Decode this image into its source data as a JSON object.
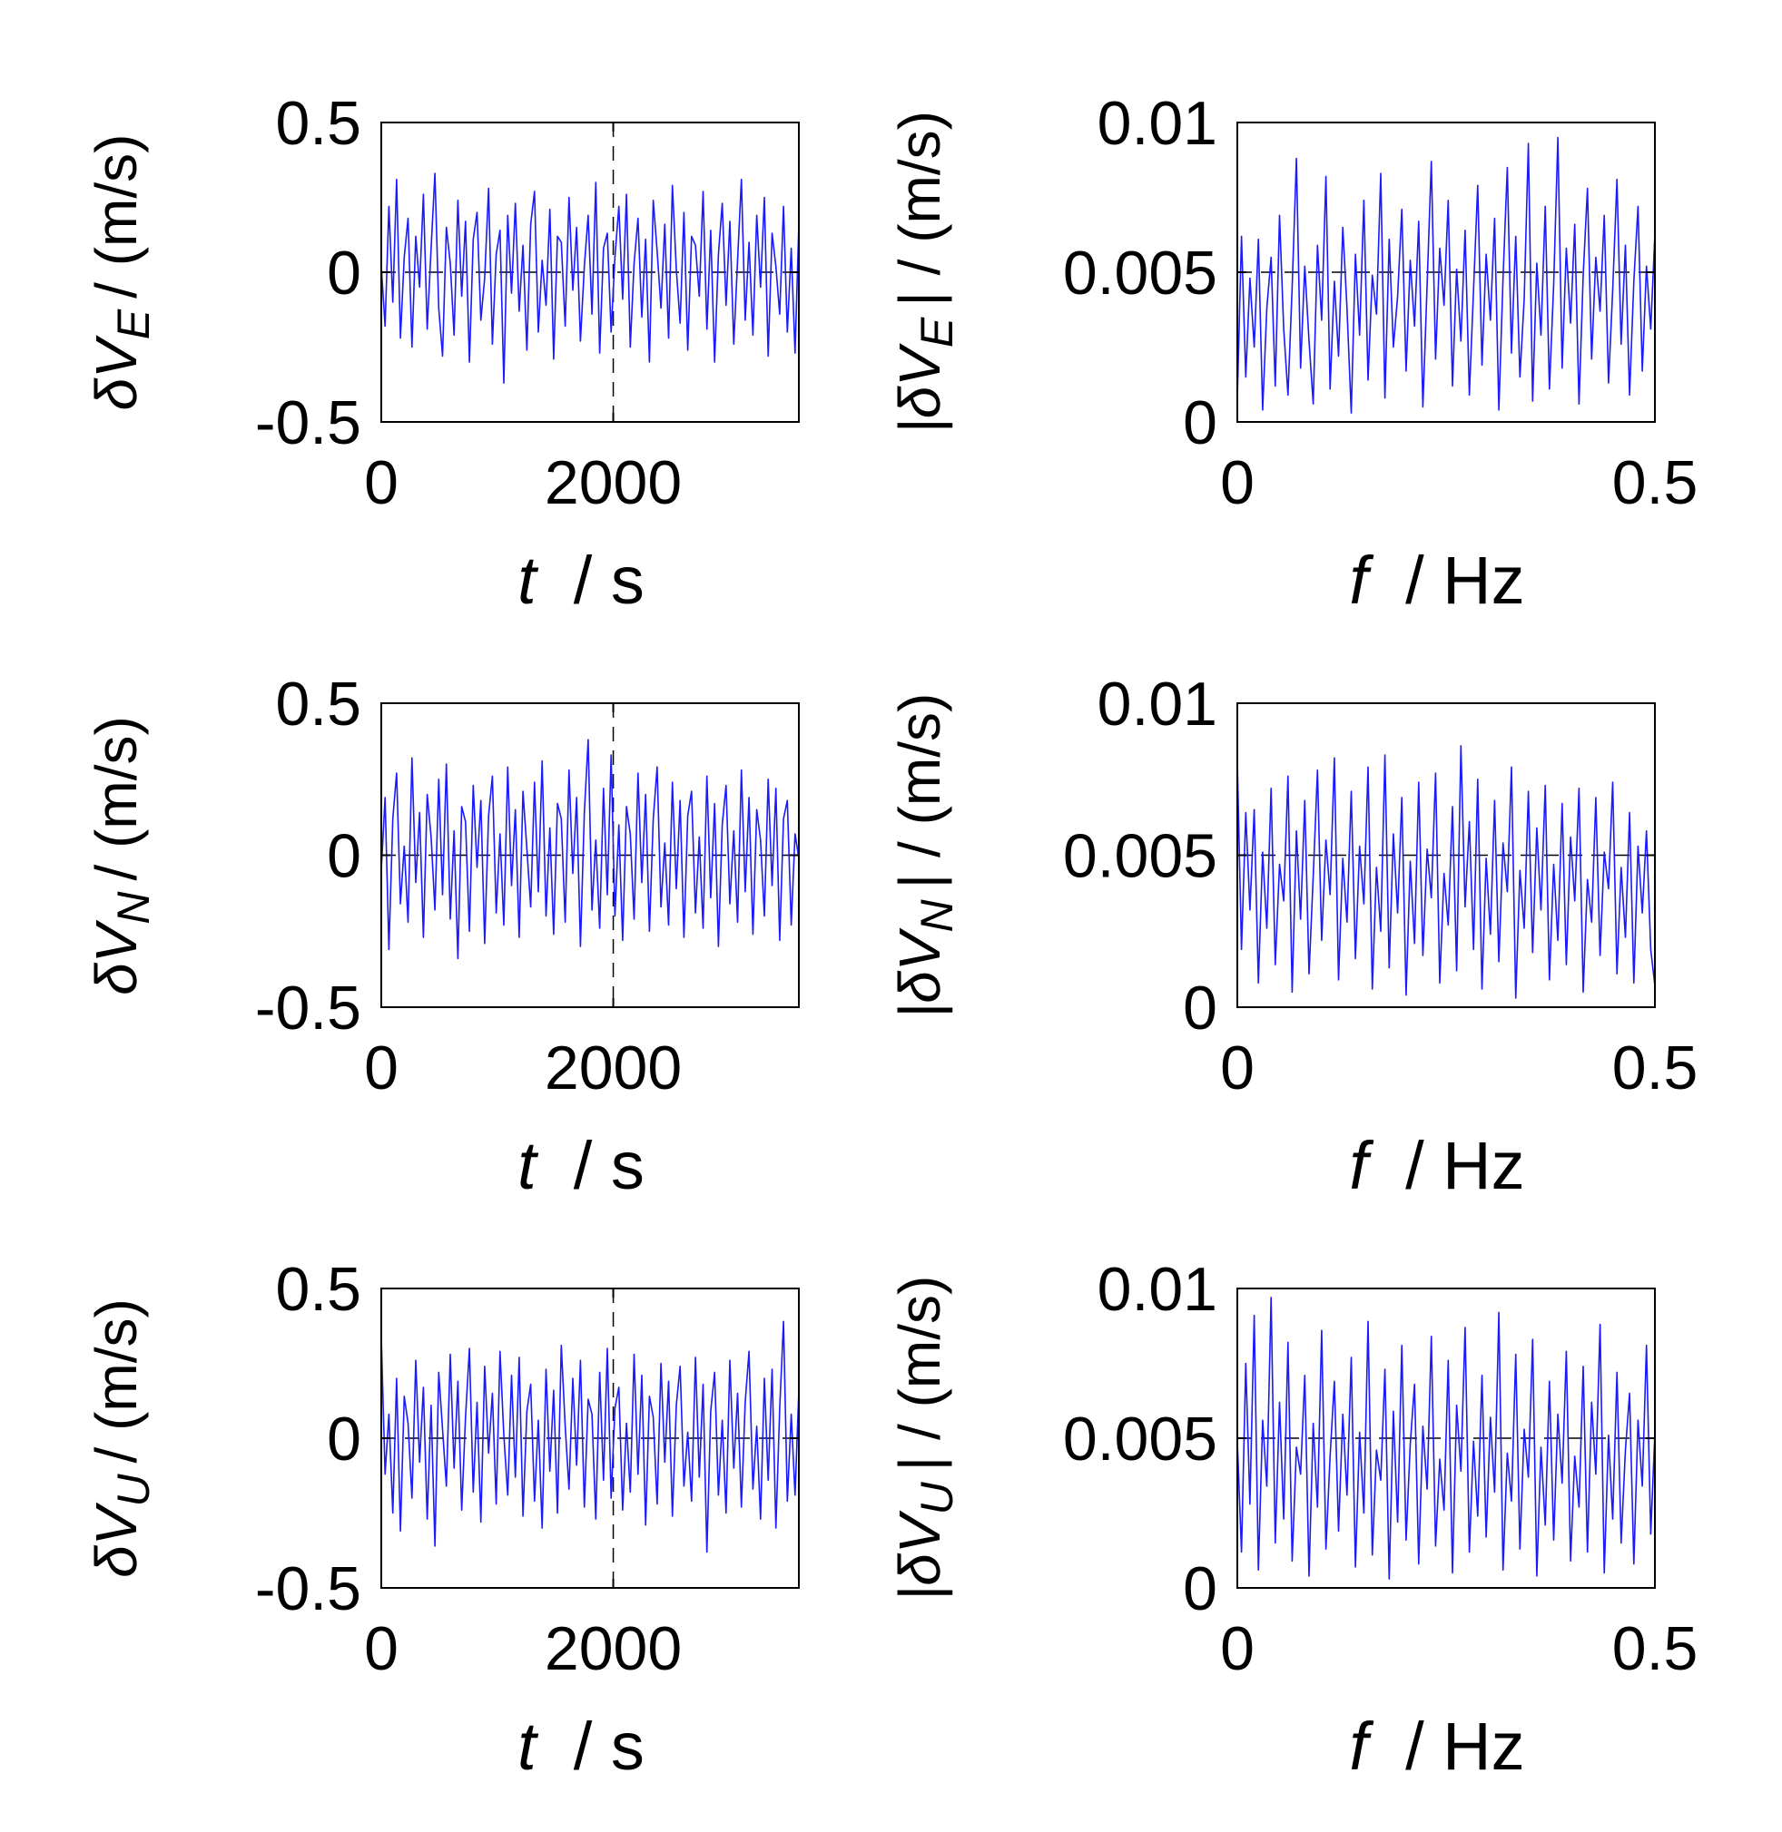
{
  "chart_data": [
    {
      "type": "line",
      "panel": "time-east",
      "xlabel": "t  / s",
      "xlabel_var": "t",
      "xlabel_unit": "/ s",
      "ylabel": "δV_E / (m/s)",
      "ylabel_prefix": "δ",
      "ylabel_var": "V",
      "ylabel_sub": "E",
      "ylabel_unit": "/ (m/s)",
      "xlim": [
        0,
        3600
      ],
      "ylim": [
        -0.5,
        0.5
      ],
      "xticks": [
        0,
        2000
      ],
      "xtick_labels": [
        "0",
        "2000"
      ],
      "yticks": [
        -0.5,
        0,
        0.5
      ],
      "ytick_labels": [
        "-0.5",
        "0",
        "0.5"
      ],
      "reference_lines": [
        {
          "orientation": "horizontal",
          "value": 0,
          "style": "dashed"
        },
        {
          "orientation": "vertical",
          "value": 2000,
          "style": "dashed"
        }
      ],
      "series": [
        {
          "name": "δV_E",
          "color": "#1a1aff",
          "x_start": 0,
          "x_end": 3600,
          "values": [
            0.02,
            -0.18,
            0.22,
            -0.1,
            0.31,
            -0.22,
            0.05,
            0.18,
            -0.25,
            0.12,
            -0.05,
            0.26,
            -0.19,
            0.08,
            0.33,
            -0.12,
            -0.28,
            0.15,
            0.03,
            -0.21,
            0.24,
            -0.08,
            0.17,
            -0.3,
            0.11,
            0.2,
            -0.16,
            -0.02,
            0.28,
            -0.24,
            0.06,
            0.14,
            -0.37,
            0.19,
            -0.07,
            0.23,
            -0.13,
            0.09,
            -0.26,
            0.16,
            0.27,
            -0.2,
            0.04,
            -0.11,
            0.21,
            -0.29,
            0.12,
            0.1,
            -0.18,
            0.25,
            -0.06,
            0.15,
            -0.23,
            0.02,
            0.19,
            -0.14,
            0.3,
            -0.27,
            0.08,
            0.13,
            -0.2,
            0.05,
            0.22,
            -0.09,
            0.26,
            -0.25,
            0.03,
            0.18,
            -0.15,
            0.11,
            -0.3,
            0.24,
            0.07,
            -0.12,
            0.16,
            -0.22,
            0.29,
            0.01,
            -0.17,
            0.2,
            -0.26,
            0.12,
            0.09,
            -0.08,
            0.27,
            -0.19,
            0.14,
            -0.3,
            0.06,
            0.23,
            -0.11,
            0.17,
            -0.24,
            0.04,
            0.31,
            -0.16,
            0.1,
            -0.21,
            0.19,
            -0.05,
            0.25,
            -0.28,
            0.13,
            0.02,
            -0.14,
            0.22,
            -0.2,
            0.08,
            -0.27,
            0.16
          ]
        }
      ]
    },
    {
      "type": "line",
      "panel": "spectrum-east",
      "xlabel": "f  / Hz",
      "xlabel_var": "f",
      "xlabel_unit": "/ Hz",
      "ylabel": "|δV_E| / (m/s)",
      "ylabel_prefix": "|δ",
      "ylabel_var": "V",
      "ylabel_sub": "E",
      "ylabel_unit": "| / (m/s)",
      "xlim": [
        0,
        0.5
      ],
      "ylim": [
        0,
        0.01
      ],
      "xticks": [
        0,
        0.5
      ],
      "xtick_labels": [
        "0",
        "0.5"
      ],
      "yticks": [
        0,
        0.005,
        0.01
      ],
      "ytick_labels": [
        "0",
        "0.005",
        "0.01"
      ],
      "reference_lines": [
        {
          "orientation": "horizontal",
          "value": 0.005,
          "style": "dashed"
        }
      ],
      "series": [
        {
          "name": "|δV_E|",
          "color": "#1a1aff",
          "x_start": 0,
          "x_end": 0.5,
          "values": [
            0.0008,
            0.0062,
            0.0015,
            0.0048,
            0.0025,
            0.0061,
            0.0004,
            0.0038,
            0.0055,
            0.0012,
            0.0069,
            0.0031,
            0.0009,
            0.0045,
            0.0088,
            0.0018,
            0.0052,
            0.0027,
            0.0006,
            0.0059,
            0.0034,
            0.0082,
            0.0011,
            0.0047,
            0.0022,
            0.0065,
            0.0038,
            0.0003,
            0.0056,
            0.0029,
            0.0074,
            0.0014,
            0.0049,
            0.0036,
            0.0083,
            0.0008,
            0.0061,
            0.0025,
            0.0042,
            0.0071,
            0.0017,
            0.0054,
            0.0032,
            0.0067,
            0.0005,
            0.0046,
            0.0087,
            0.0021,
            0.0058,
            0.0039,
            0.0074,
            0.0012,
            0.0051,
            0.0027,
            0.0064,
            0.0009,
            0.0044,
            0.0079,
            0.0019,
            0.0056,
            0.0034,
            0.0068,
            0.0004,
            0.0048,
            0.0085,
            0.0023,
            0.0062,
            0.0015,
            0.0041,
            0.0093,
            0.0007,
            0.0053,
            0.0029,
            0.0072,
            0.0011,
            0.0046,
            0.0095,
            0.0018,
            0.0058,
            0.0033,
            0.0066,
            0.0006,
            0.0049,
            0.0078,
            0.0021,
            0.0055,
            0.0037,
            0.0069,
            0.0013,
            0.0044,
            0.0081,
            0.0026,
            0.0059,
            0.0009,
            0.0047,
            0.0072,
            0.0017,
            0.0052,
            0.0031,
            0.0063
          ]
        }
      ]
    },
    {
      "type": "line",
      "panel": "time-north",
      "xlabel": "t  / s",
      "xlabel_var": "t",
      "xlabel_unit": "/ s",
      "ylabel": "δV_N / (m/s)",
      "ylabel_prefix": "δ",
      "ylabel_var": "V",
      "ylabel_sub": "N",
      "ylabel_unit": "/ (m/s)",
      "xlim": [
        0,
        3600
      ],
      "ylim": [
        -0.5,
        0.5
      ],
      "xticks": [
        0,
        2000
      ],
      "xtick_labels": [
        "0",
        "2000"
      ],
      "yticks": [
        -0.5,
        0,
        0.5
      ],
      "ytick_labels": [
        "-0.5",
        "0",
        "0.5"
      ],
      "reference_lines": [
        {
          "orientation": "horizontal",
          "value": 0,
          "style": "dashed"
        },
        {
          "orientation": "vertical",
          "value": 2000,
          "style": "dashed"
        }
      ],
      "series": [
        {
          "name": "δV_N",
          "color": "#1a1aff",
          "x_start": 0,
          "x_end": 3600,
          "values": [
            -0.05,
            0.19,
            -0.31,
            0.12,
            0.27,
            -0.16,
            0.03,
            -0.22,
            0.32,
            -0.09,
            0.14,
            -0.27,
            0.2,
            0.06,
            -0.18,
            0.25,
            -0.13,
            0.3,
            -0.21,
            0.08,
            -0.34,
            0.16,
            0.11,
            -0.25,
            0.23,
            -0.04,
            0.18,
            -0.29,
            0.13,
            0.26,
            -0.19,
            0.07,
            -0.23,
            0.29,
            -0.1,
            0.15,
            -0.27,
            0.21,
            0.02,
            -0.17,
            0.24,
            -0.12,
            0.31,
            -0.2,
            0.09,
            -0.26,
            0.17,
            0.12,
            -0.22,
            0.28,
            -0.06,
            0.19,
            -0.3,
            0.14,
            0.38,
            -0.18,
            0.05,
            -0.24,
            0.22,
            -0.13,
            0.33,
            -0.2,
            0.1,
            -0.28,
            0.16,
            0.07,
            -0.21,
            0.27,
            -0.09,
            0.2,
            -0.25,
            0.12,
            0.29,
            -0.17,
            0.04,
            -0.23,
            0.24,
            -0.11,
            0.18,
            -0.27,
            0.13,
            0.21,
            -0.19,
            0.06,
            -0.24,
            0.26,
            -0.14,
            0.17,
            -0.3,
            0.1,
            0.23,
            -0.16,
            0.08,
            -0.22,
            0.28,
            -0.12,
            0.19,
            -0.26,
            0.15,
            0.05,
            -0.2,
            0.25,
            -0.1,
            0.22,
            -0.28,
            0.12,
            0.18,
            -0.23,
            0.07,
            -0.01
          ]
        }
      ]
    },
    {
      "type": "line",
      "panel": "spectrum-north",
      "xlabel": "f  / Hz",
      "xlabel_var": "f",
      "xlabel_unit": "/ Hz",
      "ylabel": "|δV_N| / (m/s)",
      "ylabel_prefix": "|δ",
      "ylabel_var": "V",
      "ylabel_sub": "N",
      "ylabel_unit": "| / (m/s)",
      "xlim": [
        0,
        0.5
      ],
      "ylim": [
        0,
        0.01
      ],
      "xticks": [
        0,
        0.5
      ],
      "xtick_labels": [
        "0",
        "0.5"
      ],
      "yticks": [
        0,
        0.005,
        0.01
      ],
      "ytick_labels": [
        "0",
        "0.005",
        "0.01"
      ],
      "reference_lines": [
        {
          "orientation": "horizontal",
          "value": 0.005,
          "style": "dashed"
        }
      ],
      "series": [
        {
          "name": "|δV_N|",
          "color": "#1a1aff",
          "x_start": 0,
          "x_end": 0.5,
          "values": [
            0.0081,
            0.0019,
            0.0064,
            0.0032,
            0.0065,
            0.0008,
            0.0051,
            0.0026,
            0.0072,
            0.0014,
            0.0047,
            0.0035,
            0.0076,
            0.0005,
            0.0058,
            0.0029,
            0.0068,
            0.0011,
            0.0043,
            0.0078,
            0.0022,
            0.0055,
            0.0037,
            0.0082,
            0.0009,
            0.0049,
            0.0028,
            0.0071,
            0.0016,
            0.0053,
            0.0034,
            0.0079,
            0.0006,
            0.0046,
            0.0025,
            0.0083,
            0.0013,
            0.0057,
            0.0031,
            0.0069,
            0.0004,
            0.0048,
            0.0021,
            0.0074,
            0.0017,
            0.0052,
            0.0036,
            0.0077,
            0.0008,
            0.0044,
            0.0027,
            0.0066,
            0.0012,
            0.0086,
            0.0033,
            0.0061,
            0.0019,
            0.0075,
            0.0006,
            0.0049,
            0.0024,
            0.0068,
            0.0015,
            0.0054,
            0.0038,
            0.0079,
            0.0003,
            0.0045,
            0.0026,
            0.0071,
            0.0018,
            0.0059,
            0.0032,
            0.0073,
            0.0009,
            0.0047,
            0.0022,
            0.0067,
            0.0014,
            0.0056,
            0.0035,
            0.0072,
            0.0005,
            0.0042,
            0.0028,
            0.0069,
            0.0017,
            0.0051,
            0.0039,
            0.0074,
            0.0011,
            0.0046,
            0.0023,
            0.0064,
            0.0008,
            0.0053,
            0.0031,
            0.0058,
            0.0019,
            0.0007
          ]
        }
      ]
    },
    {
      "type": "line",
      "panel": "time-up",
      "xlabel": "t  / s",
      "xlabel_var": "t",
      "xlabel_unit": "/ s",
      "ylabel": "δV_U / (m/s)",
      "ylabel_prefix": "δ",
      "ylabel_var": "V",
      "ylabel_sub": "U",
      "ylabel_unit": "/ (m/s)",
      "xlim": [
        0,
        3600
      ],
      "ylim": [
        -0.5,
        0.5
      ],
      "xticks": [
        0,
        2000
      ],
      "xtick_labels": [
        "0",
        "2000"
      ],
      "yticks": [
        -0.5,
        0,
        0.5
      ],
      "ytick_labels": [
        "-0.5",
        "0",
        "0.5"
      ],
      "reference_lines": [
        {
          "orientation": "horizontal",
          "value": 0,
          "style": "dashed"
        },
        {
          "orientation": "vertical",
          "value": 2000,
          "style": "dashed"
        }
      ],
      "series": [
        {
          "name": "δV_U",
          "color": "#1a1aff",
          "x_start": 0,
          "x_end": 3600,
          "values": [
            0.34,
            -0.12,
            0.08,
            -0.25,
            0.2,
            -0.31,
            0.14,
            0.05,
            -0.2,
            0.26,
            -0.08,
            0.17,
            -0.27,
            0.11,
            -0.36,
            0.22,
            0.03,
            -0.16,
            0.28,
            -0.1,
            0.19,
            -0.24,
            0.07,
            0.3,
            -0.18,
            0.12,
            -0.28,
            0.24,
            -0.05,
            0.15,
            -0.22,
            0.29,
            0.01,
            -0.19,
            0.21,
            -0.13,
            0.27,
            -0.26,
            0.09,
            0.18,
            -0.21,
            0.06,
            -0.3,
            0.23,
            -0.11,
            0.16,
            -0.25,
            0.31,
            0.04,
            -0.17,
            0.2,
            -0.09,
            0.26,
            -0.23,
            0.13,
            0.08,
            -0.27,
            0.22,
            -0.14,
            0.3,
            -0.2,
            0.1,
            0.17,
            -0.24,
            0.05,
            -0.18,
            0.28,
            -0.12,
            0.21,
            -0.29,
            0.14,
            0.07,
            -0.22,
            0.25,
            -0.08,
            0.19,
            -0.26,
            0.11,
            0.24,
            -0.16,
            0.02,
            -0.21,
            0.27,
            -0.13,
            0.18,
            -0.38,
            0.09,
            0.22,
            -0.19,
            0.06,
            -0.25,
            0.26,
            -0.1,
            0.15,
            -0.23,
            0.12,
            0.29,
            -0.17,
            0.04,
            -0.27,
            0.2,
            -0.14,
            0.23,
            -0.3,
            0.1,
            0.39,
            -0.21,
            0.08,
            -0.19,
            0.16
          ]
        }
      ]
    },
    {
      "type": "line",
      "panel": "spectrum-up",
      "xlabel": "f  / Hz",
      "xlabel_var": "f",
      "xlabel_unit": "/ Hz",
      "ylabel": "|δV_U| / (m/s)",
      "ylabel_prefix": "|δ",
      "ylabel_var": "V",
      "ylabel_sub": "U",
      "ylabel_unit": "| / (m/s)",
      "xlim": [
        0,
        0.5
      ],
      "ylim": [
        0,
        0.01
      ],
      "xticks": [
        0,
        0.5
      ],
      "xtick_labels": [
        "0",
        "0.5"
      ],
      "yticks": [
        0,
        0.005,
        0.01
      ],
      "ytick_labels": [
        "0",
        "0.005",
        "0.01"
      ],
      "reference_lines": [
        {
          "orientation": "horizontal",
          "value": 0.005,
          "style": "dashed"
        }
      ],
      "series": [
        {
          "name": "|δV_U|",
          "color": "#1a1aff",
          "x_start": 0,
          "x_end": 0.5,
          "values": [
            0.0049,
            0.0012,
            0.0075,
            0.0028,
            0.0091,
            0.0006,
            0.0056,
            0.0034,
            0.0097,
            0.0015,
            0.0062,
            0.0023,
            0.0082,
            0.0009,
            0.0047,
            0.0038,
            0.0071,
            0.0004,
            0.0055,
            0.0027,
            0.0086,
            0.0013,
            0.0044,
            0.0069,
            0.0019,
            0.0058,
            0.0031,
            0.0077,
            0.0007,
            0.0052,
            0.0025,
            0.0089,
            0.0011,
            0.0046,
            0.0036,
            0.0073,
            0.0003,
            0.0059,
            0.0022,
            0.0081,
            0.0016,
            0.0048,
            0.0068,
            0.0008,
            0.0054,
            0.0033,
            0.0084,
            0.0014,
            0.0043,
            0.0026,
            0.0076,
            0.0005,
            0.0061,
            0.0039,
            0.0087,
            0.0012,
            0.0049,
            0.0024,
            0.0071,
            0.0017,
            0.0057,
            0.0032,
            0.0092,
            0.0006,
            0.0045,
            0.0029,
            0.0078,
            0.0013,
            0.0053,
            0.0037,
            0.0083,
            0.0004,
            0.0047,
            0.0021,
            0.0069,
            0.0016,
            0.0058,
            0.0035,
            0.0079,
            0.0009,
            0.0044,
            0.0027,
            0.0074,
            0.0012,
            0.0062,
            0.0038,
            0.0088,
            0.0005,
            0.0051,
            0.0023,
            0.0072,
            0.0015,
            0.0046,
            0.0065,
            0.0008,
            0.0056,
            0.0034,
            0.0081,
            0.0018,
            0.0052
          ]
        }
      ]
    }
  ]
}
